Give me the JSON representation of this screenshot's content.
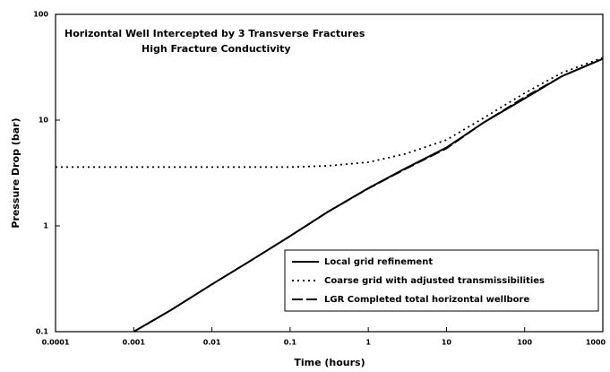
{
  "chart_data": {
    "type": "line",
    "title": [
      "Horizontal Well Intercepted by 3 Transverse Fractures",
      "High Fracture Conductivity"
    ],
    "x_label": "Time (hours)",
    "y_label": "Pressure Drop (bar)",
    "log_x": true,
    "log_y": true,
    "x": [
      0.0001,
      0.0003,
      0.001,
      0.003,
      0.01,
      0.03,
      0.1,
      0.3,
      1,
      3,
      10,
      30,
      100,
      300,
      1000
    ],
    "xlim": [
      0.0001,
      1000
    ],
    "xticks": [
      0.0001,
      0.001,
      0.01,
      0.1,
      1,
      10,
      100,
      1000
    ],
    "ylim": [
      0.1,
      100
    ],
    "yticks": [
      0.1,
      1,
      10,
      100
    ],
    "legend": "lower right",
    "series": [
      {
        "name": "Local grid refinement",
        "color": "#000000",
        "style": "solid",
        "values": [
          null,
          null,
          0.1,
          0.16,
          0.28,
          0.46,
          0.8,
          1.35,
          2.27,
          3.5,
          5.5,
          9.5,
          16,
          26,
          38
        ]
      },
      {
        "name": "Coarse grid with adjusted transmissibilities",
        "color": "#000000",
        "style": "dotted",
        "values": [
          3.6,
          3.6,
          3.6,
          3.6,
          3.6,
          3.6,
          3.6,
          3.7,
          4.0,
          4.8,
          6.5,
          10.5,
          18,
          28,
          39
        ]
      },
      {
        "name": "LGR  Completed total horizontal wellbore",
        "color": "#000000",
        "style": "dashed",
        "values": [
          null,
          null,
          0.1,
          0.16,
          0.28,
          0.46,
          0.8,
          1.35,
          2.25,
          3.45,
          5.4,
          9.5,
          16.5,
          26,
          38
        ]
      }
    ]
  }
}
